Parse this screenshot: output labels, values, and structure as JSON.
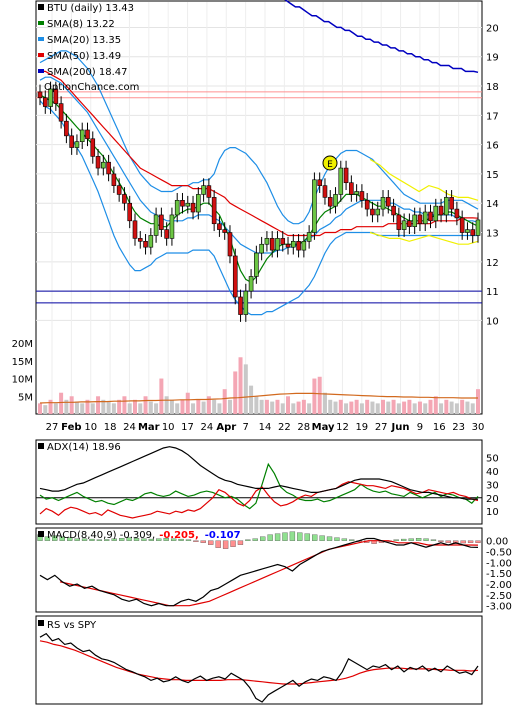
{
  "chart_data": [
    {
      "type": "line",
      "title": "BTU (daily) 13.43",
      "watermark": "OptionChance.com",
      "legend": [
        {
          "label": "BTU (daily) 13.43",
          "color": "#000000"
        },
        {
          "label": "SMA(8) 13.22",
          "color": "#008000"
        },
        {
          "label": "SMA(20) 13.35",
          "color": "#1e8ee6"
        },
        {
          "label": "SMA(50) 13.49",
          "color": "#e00000"
        },
        {
          "label": "SMA(200) 18.47",
          "color": "#0000c0"
        }
      ],
      "legend_position": "top-left",
      "x_labels": [
        "27",
        "Feb",
        "10",
        "18",
        "24",
        "Mar",
        "10",
        "17",
        "24",
        "Apr",
        "7",
        "14",
        "22",
        "28",
        "May",
        "12",
        "19",
        "27",
        "Jun",
        "9",
        "16",
        "23",
        "30"
      ],
      "y_ticks": [
        "10",
        "11",
        "12",
        "13",
        "14",
        "15",
        "16",
        "17",
        "18",
        "19",
        "20"
      ],
      "ylim": [
        9.4,
        20.8
      ],
      "earnings_marker": "E",
      "horizontal_lines": [
        {
          "value": 17.8,
          "color": "#ff9090"
        },
        {
          "value": 17.6,
          "color": "#ff9090"
        },
        {
          "value": 11.0,
          "color": "#0000a0"
        },
        {
          "value": 10.6,
          "color": "#0000a0"
        }
      ],
      "close": [
        17.6,
        17.3,
        17.9,
        17.4,
        16.8,
        16.3,
        15.9,
        16.1,
        16.5,
        16.2,
        15.6,
        15.2,
        15.4,
        15.0,
        14.6,
        14.3,
        14.0,
        13.4,
        12.8,
        12.7,
        12.5,
        12.9,
        13.6,
        13.1,
        12.8,
        13.6,
        14.1,
        13.9,
        14.0,
        13.7,
        14.3,
        14.6,
        14.2,
        13.3,
        13.1,
        13.0,
        12.2,
        10.8,
        10.2,
        11.0,
        11.5,
        12.3,
        12.6,
        12.8,
        12.4,
        12.8,
        12.6,
        12.5,
        12.7,
        12.4,
        12.7,
        13.0,
        14.8,
        14.6,
        14.2,
        13.9,
        14.3,
        15.2,
        14.7,
        14.3,
        14.4,
        14.1,
        13.8,
        13.6,
        13.8,
        14.2,
        13.9,
        13.6,
        13.1,
        13.4,
        13.2,
        13.6,
        13.3,
        13.7,
        13.4,
        13.9,
        13.6,
        14.2,
        13.8,
        13.5,
        13.0,
        13.1,
        12.9,
        13.43
      ],
      "sma8": [
        17.7,
        17.6,
        17.5,
        17.4,
        17.2,
        17.0,
        16.8,
        16.6,
        16.4,
        16.2,
        16.0,
        15.8,
        15.6,
        15.3,
        15.0,
        14.7,
        14.4,
        14.0,
        13.7,
        13.5,
        13.4,
        13.3,
        13.3,
        13.2,
        13.2,
        13.4,
        13.6,
        13.7,
        13.8,
        13.8,
        13.9,
        14.0,
        14.0,
        13.8,
        13.6,
        13.2,
        12.8,
        12.2,
        11.7,
        11.4,
        11.3,
        11.5,
        11.8,
        12.1,
        12.3,
        12.5,
        12.6,
        12.6,
        12.6,
        12.6,
        12.7,
        12.9,
        13.2,
        13.5,
        13.7,
        13.8,
        13.9,
        14.1,
        14.3,
        14.3,
        14.3,
        14.2,
        14.1,
        14.0,
        13.9,
        13.9,
        13.8,
        13.7,
        13.6,
        13.5,
        13.4,
        13.4,
        13.4,
        13.4,
        13.5,
        13.6,
        13.6,
        13.7,
        13.7,
        13.6,
        13.5,
        13.4,
        13.3,
        13.22
      ],
      "sma20": [
        18.2,
        18.3,
        18.3,
        18.2,
        18.1,
        17.9,
        17.7,
        17.5,
        17.3,
        17.1,
        16.8,
        16.5,
        16.2,
        15.9,
        15.6,
        15.3,
        15.0,
        14.7,
        14.4,
        14.1,
        13.9,
        13.7,
        13.6,
        13.5,
        13.4,
        13.4,
        13.4,
        13.4,
        13.5,
        13.5,
        13.6,
        13.6,
        13.6,
        13.5,
        13.4,
        13.2,
        13.0,
        12.8,
        12.6,
        12.5,
        12.4,
        12.3,
        12.3,
        12.3,
        12.3,
        12.4,
        12.4,
        12.5,
        12.5,
        12.6,
        12.7,
        12.8,
        12.9,
        13.1,
        13.2,
        13.3,
        13.5,
        13.6,
        13.8,
        13.9,
        14.0,
        14.1,
        14.1,
        14.1,
        14.1,
        14.1,
        14.0,
        14.0,
        13.9,
        13.8,
        13.8,
        13.7,
        13.7,
        13.6,
        13.6,
        13.6,
        13.6,
        13.6,
        13.6,
        13.5,
        13.5,
        13.4,
        13.4,
        13.35
      ],
      "bb_upper": [
        18.8,
        18.9,
        19.0,
        19.1,
        19.2,
        19.2,
        19.1,
        19.0,
        18.8,
        18.6,
        18.3,
        18.0,
        17.6,
        17.2,
        16.8,
        16.4,
        16.0,
        15.6,
        15.3,
        15.0,
        14.8,
        14.6,
        14.5,
        14.4,
        14.4,
        14.4,
        14.5,
        14.6,
        14.6,
        14.7,
        14.7,
        14.8,
        14.8,
        15.0,
        15.5,
        15.8,
        15.9,
        15.9,
        15.8,
        15.7,
        15.5,
        15.3,
        15.0,
        14.7,
        14.3,
        13.9,
        13.6,
        13.4,
        13.3,
        13.3,
        13.4,
        13.7,
        14.2,
        14.6,
        15.0,
        15.3,
        15.5,
        15.7,
        15.8,
        15.8,
        15.8,
        15.7,
        15.6,
        15.5,
        15.3,
        15.1,
        14.9,
        14.7,
        14.5,
        14.3,
        14.2,
        14.1,
        14.0,
        14.0,
        14.0,
        14.0,
        14.0,
        14.1,
        14.1,
        14.1,
        14.1,
        14.0,
        13.9,
        13.8
      ],
      "bb_lower": [
        17.5,
        17.3,
        17.2,
        17.0,
        16.8,
        16.5,
        16.2,
        15.9,
        15.6,
        15.2,
        14.8,
        14.4,
        13.9,
        13.4,
        12.9,
        12.5,
        12.2,
        11.9,
        11.7,
        11.7,
        11.8,
        11.9,
        12.1,
        12.2,
        12.3,
        12.3,
        12.3,
        12.3,
        12.3,
        12.4,
        12.4,
        12.4,
        12.4,
        12.2,
        11.8,
        11.4,
        11.0,
        10.7,
        10.5,
        10.3,
        10.2,
        10.2,
        10.2,
        10.3,
        10.3,
        10.4,
        10.5,
        10.6,
        10.7,
        10.8,
        11.0,
        11.2,
        11.5,
        11.9,
        12.3,
        12.6,
        12.8,
        12.9,
        13.0,
        13.0,
        13.0,
        13.0,
        13.0,
        13.0,
        12.9,
        12.9,
        12.9,
        12.9,
        12.9,
        12.9,
        12.9,
        12.9,
        12.9,
        12.9,
        12.9,
        12.9,
        12.9,
        12.9,
        12.9,
        12.9,
        12.9,
        12.9,
        12.9,
        12.9
      ],
      "sma50": [
        18.5,
        18.5,
        18.4,
        18.3,
        18.2,
        18.0,
        17.8,
        17.6,
        17.4,
        17.2,
        17.0,
        16.8,
        16.6,
        16.4,
        16.2,
        16.0,
        15.8,
        15.6,
        15.4,
        15.2,
        15.1,
        15.0,
        14.9,
        14.8,
        14.7,
        14.6,
        14.6,
        14.6,
        14.6,
        14.5,
        14.5,
        14.5,
        14.5,
        14.4,
        14.3,
        14.2,
        14.0,
        13.9,
        13.8,
        13.7,
        13.6,
        13.5,
        13.4,
        13.3,
        13.2,
        13.1,
        13.0,
        12.9,
        12.9,
        12.9,
        12.9,
        12.9,
        12.9,
        12.9,
        13.0,
        13.0,
        13.0,
        13.1,
        13.1,
        13.1,
        13.2,
        13.2,
        13.2,
        13.2,
        13.2,
        13.2,
        13.3,
        13.3,
        13.3,
        13.3,
        13.3,
        13.3,
        13.3,
        13.3,
        13.3,
        13.4,
        13.4,
        13.4,
        13.4,
        13.4,
        13.5,
        13.5,
        13.5,
        13.49
      ],
      "sma200": [
        21.4,
        21.3,
        21.2,
        21.2,
        21.1,
        21.0,
        21.0,
        20.9,
        20.8,
        20.7,
        20.7,
        20.6,
        20.5,
        20.4,
        20.4,
        20.3,
        20.2,
        20.2,
        20.1,
        20.0,
        20.0,
        19.9,
        19.9,
        19.8,
        19.7,
        19.7,
        19.6,
        19.6,
        19.5,
        19.5,
        19.4,
        19.4,
        19.3,
        19.3,
        19.2,
        19.2,
        19.1,
        19.1,
        19.0,
        19.0,
        18.9,
        18.9,
        18.8,
        18.8,
        18.7,
        18.7,
        18.7,
        18.6,
        18.6,
        18.6,
        18.5,
        18.5,
        18.5,
        18.47
      ]
    },
    {
      "type": "bar",
      "name": "volume",
      "y_ticks": [
        "5M",
        "10M",
        "15M",
        "20M"
      ],
      "ylim": [
        0,
        22
      ],
      "values": [
        3,
        2.5,
        4,
        3,
        6,
        4,
        5,
        3.5,
        3,
        4,
        3,
        5,
        4,
        3.5,
        3,
        4,
        5,
        3,
        4,
        3,
        5,
        3.5,
        3,
        10,
        5,
        4,
        3,
        4,
        6,
        3,
        4,
        3.5,
        5,
        4,
        3,
        7,
        4,
        12,
        16,
        14,
        8,
        5,
        4,
        4,
        3.5,
        4,
        3,
        5,
        3,
        3.5,
        4,
        3,
        10,
        10.5,
        6,
        4,
        3.5,
        4,
        3,
        3.5,
        4,
        3,
        4,
        3.5,
        3,
        4,
        3.5,
        4,
        3,
        3.5,
        4,
        3,
        3.5,
        3,
        4,
        5,
        3,
        4,
        3.5,
        3,
        4,
        3.5,
        3,
        7
      ],
      "volume_average": [
        3.1,
        3.2,
        3.2,
        3.3,
        3.3,
        3.4,
        3.4,
        3.5,
        3.5,
        3.6,
        3.6,
        3.7,
        3.7,
        3.8,
        3.8,
        3.9,
        3.9,
        4.0,
        4.0,
        4.1,
        4.1,
        4.2,
        4.3,
        4.5,
        4.6,
        4.8,
        5.0,
        5.2,
        5.4,
        5.6,
        5.7,
        5.8,
        5.8,
        5.8,
        5.7,
        5.6,
        5.5,
        5.4,
        5.3,
        5.2,
        5.1,
        5.0,
        4.9,
        4.9,
        4.8,
        4.8,
        4.7,
        4.7,
        4.6,
        4.6,
        4.6,
        4.5,
        4.5,
        4.5
      ]
    },
    {
      "type": "line",
      "title": "ADX(14) 18.96",
      "y_ticks": [
        "10",
        "20",
        "30",
        "40",
        "50"
      ],
      "ylim": [
        2,
        60
      ],
      "reference_line": 20,
      "adx": [
        27,
        26,
        25,
        25,
        26,
        28,
        30,
        31,
        33,
        35,
        37,
        39,
        41,
        43,
        45,
        47,
        49,
        51,
        53,
        55,
        57,
        58,
        57,
        55,
        52,
        48,
        44,
        41,
        38,
        35,
        33,
        32,
        30,
        29,
        28,
        27,
        27,
        27,
        28,
        29,
        28,
        27,
        26,
        25,
        24,
        24,
        25,
        26,
        27,
        29,
        31,
        33,
        34,
        34,
        34,
        34,
        33,
        32,
        30,
        28,
        26,
        25,
        24,
        24,
        23,
        22,
        21,
        20,
        20,
        19,
        19,
        18.96
      ],
      "plus_di": [
        22,
        19,
        20,
        18,
        20,
        22,
        24,
        21,
        19,
        17,
        18,
        16,
        15,
        17,
        19,
        18,
        20,
        23,
        24,
        22,
        21,
        22,
        25,
        23,
        21,
        22,
        24,
        25,
        24,
        22,
        20,
        21,
        19,
        15,
        12,
        16,
        30,
        45,
        38,
        28,
        24,
        22,
        19,
        18,
        18,
        19,
        17,
        18,
        20,
        22,
        24,
        26,
        30,
        27,
        25,
        24,
        25,
        23,
        22,
        21,
        24,
        22,
        20,
        22,
        24,
        21,
        23,
        22,
        20,
        19,
        16,
        21
      ],
      "minus_di": [
        8,
        12,
        10,
        7,
        11,
        13,
        12,
        10,
        8,
        9,
        7,
        11,
        9,
        7,
        6,
        5,
        6,
        7,
        8,
        10,
        9,
        8,
        10,
        9,
        11,
        10,
        12,
        16,
        20,
        26,
        24,
        20,
        16,
        14,
        18,
        25,
        28,
        22,
        17,
        14,
        15,
        17,
        20,
        22,
        21,
        24,
        25,
        26,
        27,
        30,
        32,
        31,
        30,
        29,
        29,
        28,
        27,
        29,
        28,
        27,
        25,
        23,
        24,
        26,
        25,
        24,
        23,
        24,
        22,
        21,
        19,
        18
      ]
    },
    {
      "type": "line",
      "title": "MACD(8,40,9) -0.309,",
      "values_shown": [
        "-0.205,",
        "-0.107"
      ],
      "value_colors": [
        "#ff0000",
        "#0000ff"
      ],
      "y_ticks": [
        "0.00",
        "-0.50",
        "-1.00",
        "-1.50",
        "-2.00",
        "-2.50",
        "-3.00"
      ],
      "ylim": [
        -3.2,
        0.4
      ],
      "macd": [
        -1.6,
        -1.8,
        -1.6,
        -1.9,
        -2.1,
        -2.0,
        -2.2,
        -2.1,
        -2.3,
        -2.4,
        -2.5,
        -2.7,
        -2.8,
        -2.7,
        -2.9,
        -3.0,
        -2.9,
        -3.0,
        -3.0,
        -2.8,
        -2.7,
        -2.8,
        -2.6,
        -2.3,
        -2.2,
        -2.0,
        -1.8,
        -1.6,
        -1.5,
        -1.4,
        -1.3,
        -1.2,
        -1.1,
        -1.2,
        -1.4,
        -1.1,
        -0.9,
        -0.7,
        -0.5,
        -0.4,
        -0.3,
        -0.2,
        -0.1,
        0.0,
        0.1,
        0.1,
        0.0,
        -0.1,
        -0.2,
        -0.2,
        -0.1,
        -0.2,
        -0.3,
        -0.2,
        -0.1,
        -0.2,
        -0.1,
        -0.2,
        -0.3,
        -0.309
      ],
      "signal": [
        -1.9,
        -2.0,
        -2.1,
        -2.2,
        -2.3,
        -2.4,
        -2.5,
        -2.6,
        -2.7,
        -2.8,
        -2.9,
        -3.0,
        -3.0,
        -3.0,
        -2.9,
        -2.8,
        -2.6,
        -2.4,
        -2.2,
        -2.0,
        -1.8,
        -1.6,
        -1.4,
        -1.2,
        -1.0,
        -0.8,
        -0.6,
        -0.4,
        -0.3,
        -0.2,
        -0.1,
        0.0,
        0.0,
        0.0,
        -0.1,
        -0.1,
        -0.1,
        -0.2,
        -0.2,
        -0.2,
        -0.2,
        -0.2,
        -0.205
      ],
      "histogram": [
        0.3,
        0.2,
        0.25,
        0.2,
        0.15,
        0.1,
        0.1,
        0.08,
        0.05,
        0.06,
        0.1,
        0.12,
        0.15,
        0.12,
        0.1,
        0.08,
        0.1,
        0.12,
        0.1,
        0.08,
        0.05,
        -0.05,
        -0.1,
        -0.2,
        -0.35,
        -0.4,
        -0.3,
        -0.2,
        0.05,
        0.1,
        0.2,
        0.3,
        0.35,
        0.4,
        0.45,
        0.4,
        0.35,
        0.3,
        0.25,
        0.2,
        0.15,
        0.1,
        0.05,
        -0.05,
        -0.1,
        -0.15,
        -0.1,
        -0.05,
        0.05,
        0.08,
        0.1,
        0.12,
        0.1,
        0.05,
        -0.05,
        -0.1,
        -0.15,
        -0.12,
        -0.1,
        -0.107
      ]
    },
    {
      "type": "line",
      "title": "RS vs SPY",
      "rs": [
        0.9,
        0.95,
        0.85,
        0.88,
        0.8,
        0.82,
        0.75,
        0.7,
        0.72,
        0.65,
        0.6,
        0.58,
        0.55,
        0.5,
        0.45,
        0.42,
        0.38,
        0.35,
        0.3,
        0.33,
        0.28,
        0.3,
        0.35,
        0.3,
        0.27,
        0.32,
        0.36,
        0.3,
        0.33,
        0.35,
        0.32,
        0.4,
        0.35,
        0.3,
        0.2,
        0.05,
        0.0,
        0.1,
        0.15,
        0.2,
        0.25,
        0.3,
        0.22,
        0.28,
        0.32,
        0.3,
        0.35,
        0.33,
        0.3,
        0.42,
        0.6,
        0.55,
        0.5,
        0.45,
        0.5,
        0.48,
        0.52,
        0.45,
        0.5,
        0.42,
        0.48,
        0.45,
        0.5,
        0.43,
        0.47,
        0.42,
        0.5,
        0.45,
        0.4,
        0.42,
        0.38,
        0.5
      ],
      "rs_sma": [
        0.85,
        0.83,
        0.8,
        0.78,
        0.75,
        0.72,
        0.68,
        0.64,
        0.6,
        0.56,
        0.52,
        0.48,
        0.45,
        0.42,
        0.39,
        0.37,
        0.35,
        0.33,
        0.32,
        0.31,
        0.31,
        0.3,
        0.3,
        0.3,
        0.3,
        0.3,
        0.3,
        0.31,
        0.31,
        0.31,
        0.3,
        0.29,
        0.28,
        0.27,
        0.26,
        0.25,
        0.25,
        0.25,
        0.26,
        0.27,
        0.28,
        0.29,
        0.3,
        0.31,
        0.33,
        0.36,
        0.4,
        0.43,
        0.45,
        0.46,
        0.47,
        0.47,
        0.47,
        0.46,
        0.46,
        0.46,
        0.46,
        0.45,
        0.45,
        0.44,
        0.44,
        0.44,
        0.43,
        0.44
      ]
    }
  ],
  "colors": {
    "up_candle": "#6cc644",
    "down_candle": "#d01010",
    "vol_up": "#f4a6b4",
    "vol_down": "#c8c8c8",
    "bollinger": "#1e8ee6",
    "sma50": "#e00000",
    "sma200": "#0000c0",
    "yellow_band": "#f0f000",
    "adx": "#000000",
    "plus_di": "#008000",
    "minus_di": "#e00000",
    "macd": "#000000",
    "signal": "#e00000",
    "hist_pos": "#90e090",
    "hist_neg": "#ff9090"
  }
}
